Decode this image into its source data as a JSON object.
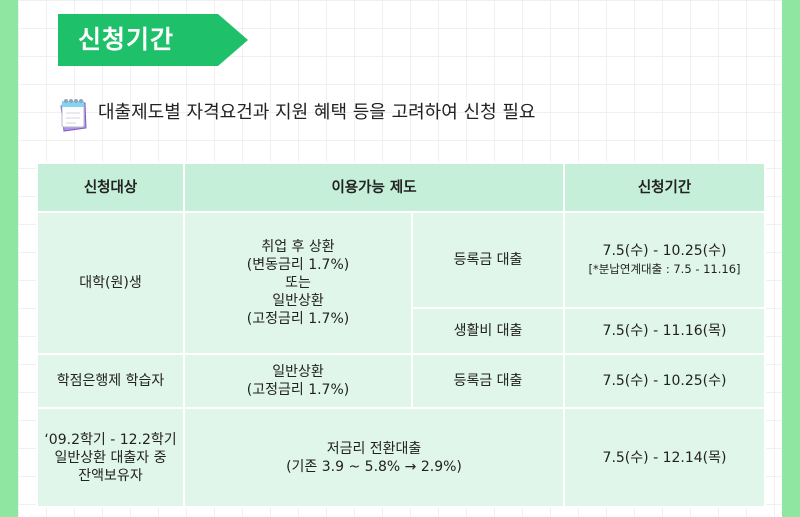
{
  "section": {
    "title": "신청기간"
  },
  "intro": {
    "text": "대출제도별 자격요건과 지원 혜택 등을 고려하여 신청 필요"
  },
  "table": {
    "headers": [
      "신청대상",
      "이용가능 제도",
      "신청기간"
    ],
    "rows": [
      {
        "target": "대학(원)생",
        "plan": [
          "취업 후 상환",
          "(변동금리 1.7%)",
          "또는",
          "일반상환",
          "(고정금리 1.7%)"
        ],
        "sub_items": [
          {
            "loan": "등록금 대출",
            "period": "7.5(수) - 10.25(수)",
            "note": "[*분납연계대출 : 7.5 - 11.16]"
          },
          {
            "loan": "생활비 대출",
            "period": "7.5(수) - 11.16(목)"
          }
        ]
      },
      {
        "target": "학점은행제 학습자",
        "plan": [
          "일반상환",
          "(고정금리 1.7%)"
        ],
        "loan": "등록금 대출",
        "period": "7.5(수) - 10.25(수)"
      },
      {
        "target": [
          "‘09.2학기 - 12.2학기",
          "일반상환 대출자 중",
          "잔액보유자"
        ],
        "plan": [
          "저금리 전환대출",
          "(기존 3.9 ~ 5.8% → 2.9%)"
        ],
        "period": "7.5(수) - 12.14(목)"
      }
    ]
  },
  "colors": {
    "outer_background": "#8fe6a0",
    "banner": "#1fc06a",
    "header_cell": "#c6efd9",
    "body_cell": "#e1f6eb"
  },
  "icons": {
    "note": "notepad-icon"
  }
}
